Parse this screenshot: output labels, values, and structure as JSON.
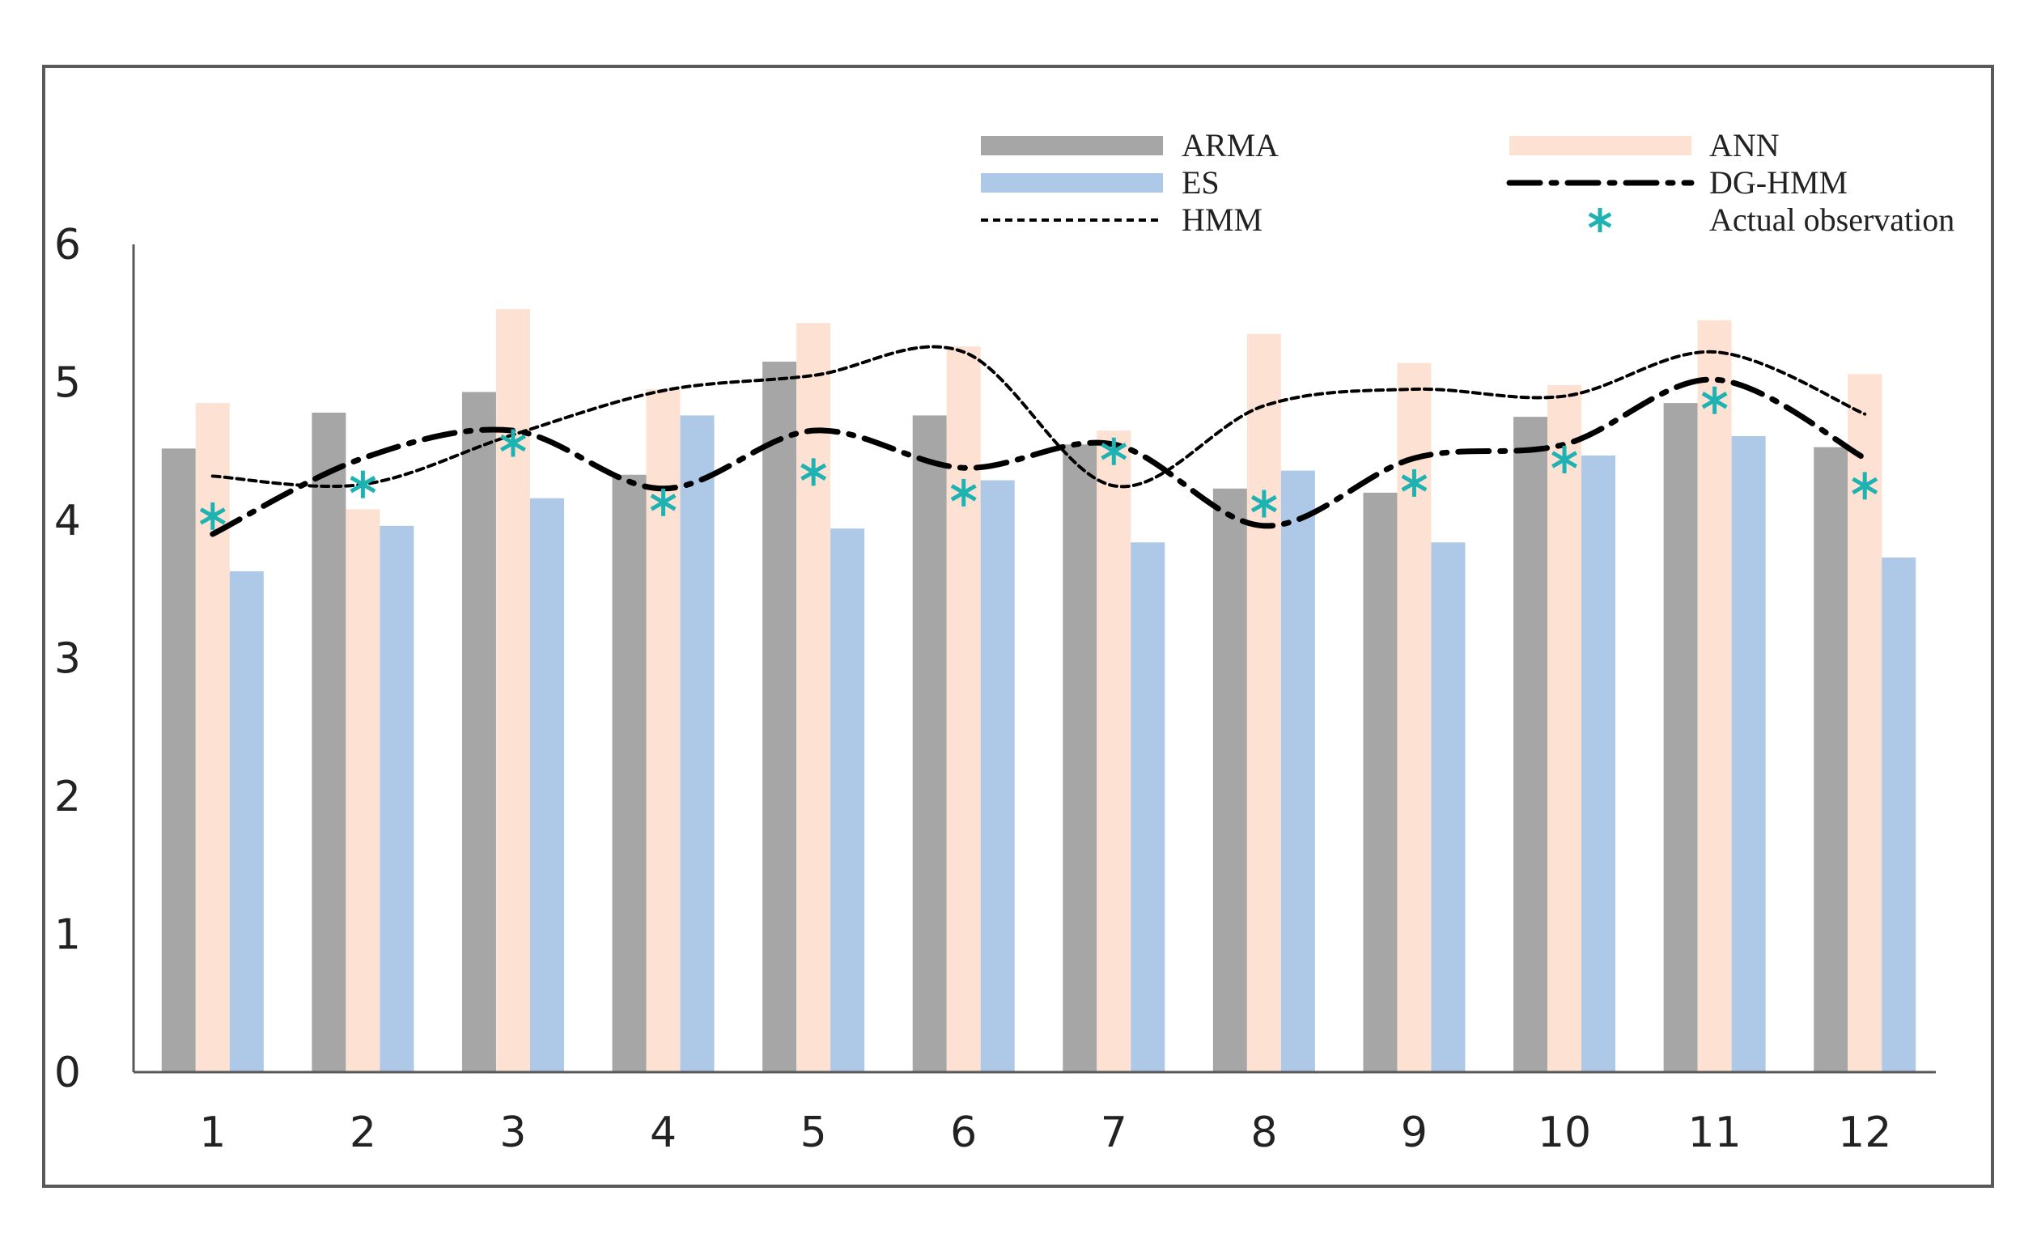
{
  "chart_data": {
    "type": "bar",
    "title": "",
    "xlabel": "",
    "ylabel": "",
    "categories": [
      "1",
      "2",
      "3",
      "4",
      "5",
      "6",
      "7",
      "8",
      "9",
      "10",
      "11",
      "12"
    ],
    "ylim": [
      0,
      6
    ],
    "yticks": [
      "0",
      "1",
      "2",
      "3",
      "4",
      "5",
      "6"
    ],
    "legend_position": "top-right",
    "bar_series": [
      {
        "name": "ARMA",
        "color": "#a6a6a6",
        "values": [
          4.52,
          4.78,
          4.93,
          4.33,
          5.15,
          4.76,
          4.55,
          4.23,
          4.2,
          4.75,
          4.85,
          4.53
        ]
      },
      {
        "name": "ANN",
        "color": "#fde2d3",
        "values": [
          4.85,
          4.08,
          5.53,
          4.95,
          5.43,
          5.26,
          4.65,
          5.35,
          5.14,
          4.98,
          5.45,
          5.06
        ]
      },
      {
        "name": "ES",
        "color": "#aec8e8",
        "values": [
          3.63,
          3.96,
          4.16,
          4.76,
          3.94,
          4.29,
          3.84,
          4.36,
          3.84,
          4.47,
          4.61,
          3.73
        ]
      }
    ],
    "line_series": [
      {
        "name": "HMM",
        "style": "dotted",
        "color": "#000000",
        "values": [
          4.32,
          4.26,
          4.62,
          4.94,
          5.05,
          5.22,
          4.25,
          4.83,
          4.95,
          4.9,
          5.22,
          4.77
        ]
      },
      {
        "name": "DG-HMM",
        "style": "dash-dot",
        "color": "#000000",
        "values": [
          3.9,
          4.45,
          4.65,
          4.23,
          4.65,
          4.38,
          4.55,
          3.96,
          4.45,
          4.55,
          5.02,
          4.45
        ]
      }
    ],
    "marker_series": [
      {
        "name": "Actual observation",
        "marker": "asterisk",
        "color": "#1fb2b2",
        "values": [
          4.03,
          4.26,
          4.56,
          4.13,
          4.35,
          4.2,
          4.5,
          4.12,
          4.27,
          4.44,
          4.87,
          4.25
        ]
      }
    ]
  }
}
